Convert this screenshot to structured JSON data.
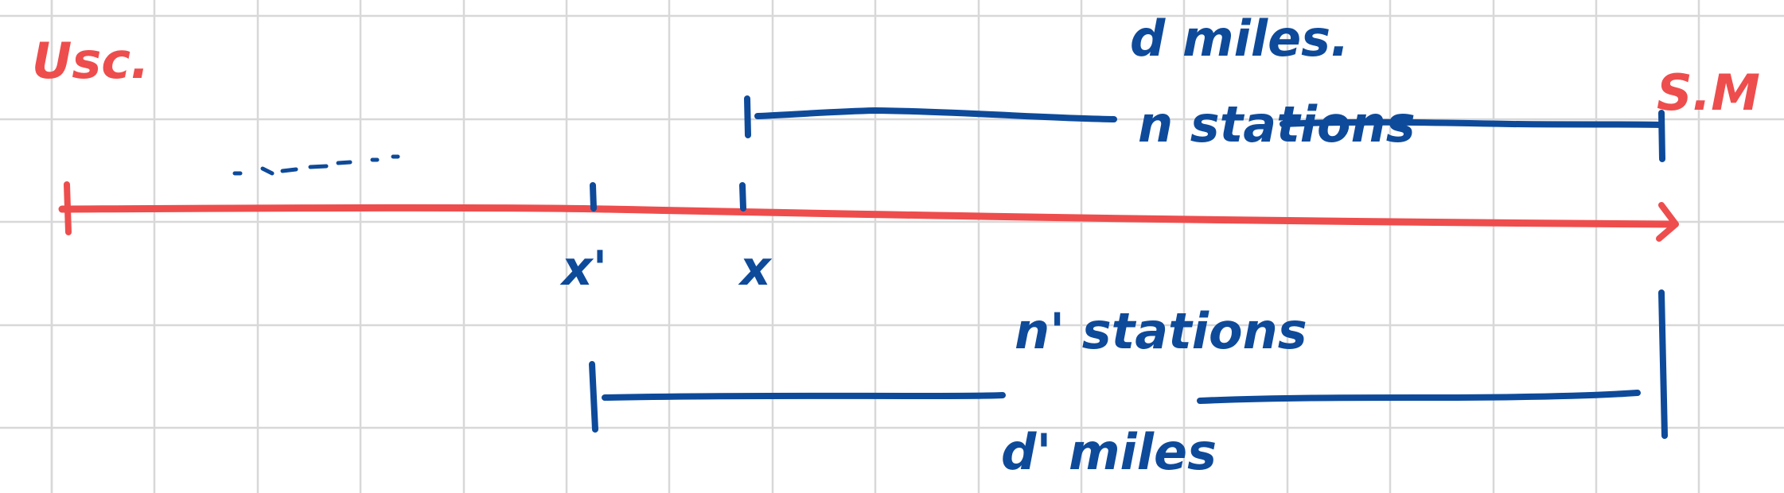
{
  "labels": {
    "start_city": "Usc.",
    "end_city": "S.M",
    "point_x_prime": "x'",
    "point_x": "x",
    "d_miles": "d miles.",
    "n_stations": "n stations",
    "n_prime_stations": "n' stations",
    "d_prime_miles": "d' miles"
  },
  "colors": {
    "grid": "#d8d8d8",
    "red_ink": "#ee4d4d",
    "blue_ink": "#0e4a9a",
    "background": "#ffffff"
  }
}
